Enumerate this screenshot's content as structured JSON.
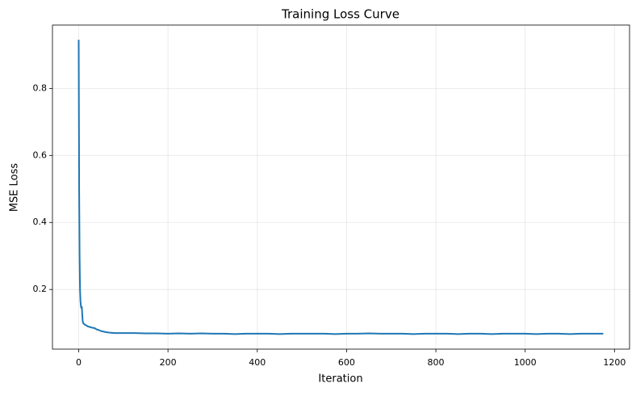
{
  "chart_data": {
    "type": "line",
    "title": "Training Loss Curve",
    "x_label": "Iteration",
    "y_label": "MSE Loss",
    "x": [
      0,
      1,
      2,
      3,
      4,
      5,
      6,
      7,
      8,
      9,
      10,
      12,
      15,
      18,
      20,
      25,
      30,
      35,
      40,
      45,
      50,
      60,
      70,
      80,
      100,
      125,
      150,
      175,
      200,
      225,
      250,
      275,
      300,
      325,
      350,
      375,
      400,
      425,
      450,
      475,
      500,
      525,
      550,
      575,
      600,
      625,
      650,
      675,
      700,
      725,
      750,
      775,
      800,
      825,
      850,
      875,
      900,
      925,
      950,
      975,
      1000,
      1025,
      1050,
      1075,
      1100,
      1125,
      1150,
      1175
    ],
    "series": [
      {
        "name": "Loss",
        "color": "#1f77b4",
        "values": [
          0.945,
          0.5,
          0.3,
          0.2,
          0.165,
          0.15,
          0.145,
          0.148,
          0.125,
          0.105,
          0.1,
          0.097,
          0.094,
          0.092,
          0.09,
          0.088,
          0.086,
          0.085,
          0.081,
          0.079,
          0.076,
          0.073,
          0.071,
          0.07,
          0.07,
          0.07,
          0.069,
          0.069,
          0.068,
          0.069,
          0.068,
          0.069,
          0.068,
          0.068,
          0.067,
          0.068,
          0.068,
          0.068,
          0.067,
          0.068,
          0.068,
          0.068,
          0.068,
          0.067,
          0.068,
          0.068,
          0.069,
          0.068,
          0.068,
          0.068,
          0.067,
          0.068,
          0.068,
          0.068,
          0.067,
          0.068,
          0.068,
          0.067,
          0.068,
          0.068,
          0.068,
          0.067,
          0.068,
          0.068,
          0.067,
          0.068,
          0.068,
          0.068
        ]
      }
    ],
    "xlim": [
      -58.75,
      1233.75
    ],
    "ylim": [
      0.022,
      0.989
    ],
    "xticks": [
      0,
      200,
      400,
      600,
      800,
      1000,
      1200
    ],
    "yticks": [
      0.2,
      0.4,
      0.6,
      0.8
    ],
    "grid": true
  }
}
